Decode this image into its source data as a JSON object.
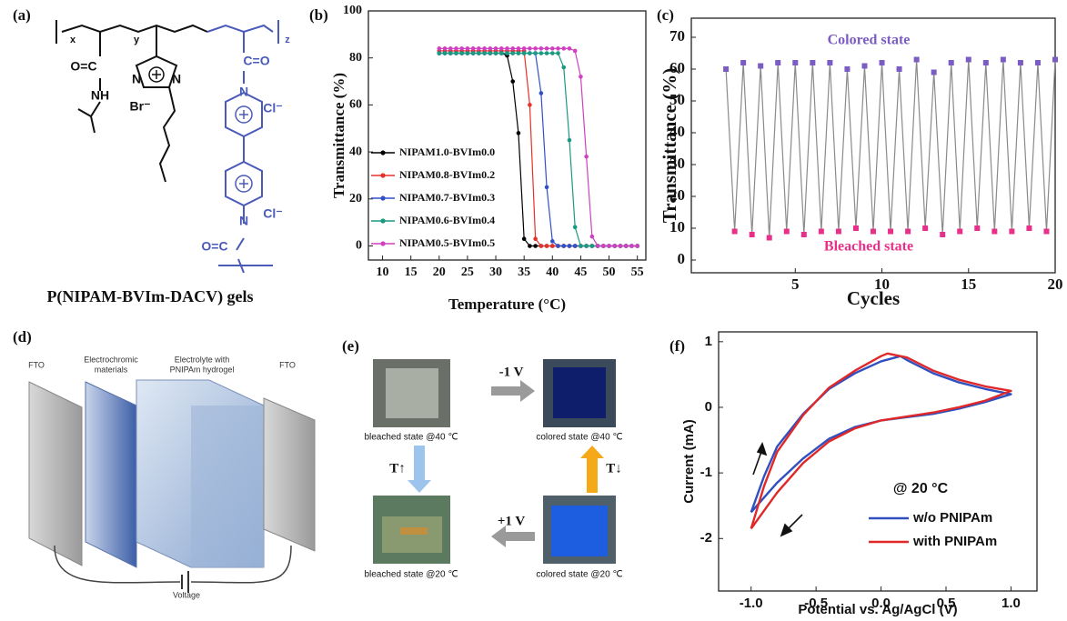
{
  "panel_labels": [
    "(a)",
    "(b)",
    "(c)",
    "(d)",
    "(e)",
    "(f)"
  ],
  "structure": {
    "caption": "P(NIPAM-BVIm-DACV) gels",
    "labels": [
      "x",
      "y",
      "z",
      "O=C",
      "NH",
      "N",
      "N",
      "Br⁻",
      "C=O",
      "N",
      "Cl⁻",
      "N",
      "Cl⁻",
      "O=C"
    ]
  },
  "device": {
    "labels": [
      [
        "FTO"
      ],
      [
        "Electrochromic",
        "materials"
      ],
      [
        "Electrolyte with",
        "PNIPAm hydrogel"
      ],
      [
        "FTO"
      ],
      [
        "Voltage"
      ]
    ]
  },
  "photos": {
    "captions": [
      "bleached state @40 ℃",
      "colored state @40 ℃",
      "bleached state @20 ℃",
      "colored state @20 ℃"
    ],
    "arrows": [
      "-1 V",
      "+1 V",
      "T↑",
      "T↓"
    ]
  },
  "chart_data": [
    {
      "type": "line",
      "xlabel": "Temperature (°C)",
      "ylabel": "Transmittance (%)",
      "marker": "circle",
      "legend": "center-left",
      "x": [
        20,
        21,
        22,
        23,
        24,
        25,
        26,
        27,
        28,
        29,
        30,
        31,
        32,
        33,
        34,
        35,
        36,
        37,
        38,
        39,
        40,
        41,
        42,
        43,
        44,
        45,
        46,
        47,
        48,
        49,
        50,
        51,
        52,
        53,
        54,
        55
      ],
      "xlim": [
        7.5,
        56.5
      ],
      "xticks": [
        10,
        15,
        20,
        25,
        30,
        35,
        40,
        45,
        50,
        55
      ],
      "ylim": [
        -6,
        100
      ],
      "yticks": [
        0,
        20,
        40,
        60,
        80,
        100
      ],
      "series": [
        {
          "name": "NIPAM1.0-BVIm0.0",
          "color": "#000000",
          "values": [
            82,
            82,
            82,
            82,
            82,
            82,
            82,
            82,
            82,
            82,
            82,
            82,
            81,
            70,
            48,
            3,
            0,
            0,
            0,
            0,
            0,
            0,
            0,
            0,
            0,
            0,
            0,
            0,
            0,
            0,
            0,
            0,
            0,
            0,
            0,
            0
          ]
        },
        {
          "name": "NIPAM0.8-BVIm0.2",
          "color": "#e8302a",
          "values": [
            83,
            83,
            83,
            83,
            83,
            83,
            83,
            83,
            83,
            83,
            83,
            83,
            83,
            83,
            83,
            83,
            60,
            3,
            0,
            0,
            0,
            0,
            0,
            0,
            0,
            0,
            0,
            0,
            0,
            0,
            0,
            0,
            0,
            0,
            0,
            0
          ]
        },
        {
          "name": "NIPAM0.7-BVIm0.3",
          "color": "#3050c8",
          "values": [
            82,
            82,
            82,
            82,
            82,
            82,
            82,
            82,
            82,
            82,
            82,
            82,
            82,
            82,
            82,
            82,
            82,
            82,
            65,
            25,
            2,
            0,
            0,
            0,
            0,
            0,
            0,
            0,
            0,
            0,
            0,
            0,
            0,
            0,
            0,
            0
          ]
        },
        {
          "name": "NIPAM0.6-BVIm0.4",
          "color": "#1a9a80",
          "values": [
            82,
            82,
            82,
            82,
            82,
            82,
            82,
            82,
            82,
            82,
            82,
            82,
            82,
            82,
            82,
            82,
            82,
            82,
            82,
            82,
            82,
            82,
            76,
            45,
            8,
            0,
            0,
            0,
            0,
            0,
            0,
            0,
            0,
            0,
            0,
            0
          ]
        },
        {
          "name": "NIPAM0.5-BVIm0.5",
          "color": "#d040c0",
          "values": [
            84,
            84,
            84,
            84,
            84,
            84,
            84,
            84,
            84,
            84,
            84,
            84,
            84,
            84,
            84,
            84,
            84,
            84,
            84,
            84,
            84,
            84,
            84,
            84,
            83,
            72,
            38,
            4,
            0,
            0,
            0,
            0,
            0,
            0,
            0,
            0
          ]
        }
      ]
    },
    {
      "type": "line",
      "xlabel": "Cycles",
      "ylabel": "Transmittance (%)",
      "marker": "square",
      "annotations": [
        "Colored state",
        "Bleached state"
      ],
      "xlim": [
        -1,
        20
      ],
      "xticks": [
        5,
        10,
        15,
        20
      ],
      "ylim": [
        -4,
        76
      ],
      "yticks": [
        0,
        10,
        20,
        30,
        40,
        50,
        60,
        70
      ],
      "series": [
        {
          "color": "#8a8a8a",
          "x": [
            1,
            1.5,
            2,
            2.5,
            3,
            3.5,
            4,
            4.5,
            5,
            5.5,
            6,
            6.5,
            7,
            7.5,
            8,
            8.5,
            9,
            9.5,
            10,
            10.5,
            11,
            11.5,
            12,
            12.5,
            13,
            13.5,
            14,
            14.5,
            15,
            15.5,
            16,
            16.5,
            17,
            17.5,
            18,
            18.5,
            19,
            19.5,
            20
          ],
          "values": [
            60,
            9,
            62,
            8,
            61,
            7,
            62,
            9,
            62,
            8,
            62,
            9,
            62,
            9,
            60,
            10,
            61,
            9,
            62,
            9,
            60,
            9,
            63,
            10,
            59,
            8,
            62,
            9,
            63,
            10,
            62,
            9,
            63,
            9,
            62,
            10,
            62,
            9,
            63
          ],
          "marker_colors": [
            "#7b5cc4",
            "#e8308a",
            "#7b5cc4",
            "#e8308a",
            "#7b5cc4",
            "#e8308a",
            "#7b5cc4",
            "#e8308a",
            "#7b5cc4",
            "#e8308a",
            "#7b5cc4",
            "#e8308a",
            "#7b5cc4",
            "#e8308a",
            "#7b5cc4",
            "#e8308a",
            "#7b5cc4",
            "#e8308a",
            "#7b5cc4",
            "#e8308a",
            "#7b5cc4",
            "#e8308a",
            "#7b5cc4",
            "#e8308a",
            "#7b5cc4",
            "#e8308a",
            "#7b5cc4",
            "#e8308a",
            "#7b5cc4",
            "#e8308a",
            "#7b5cc4",
            "#e8308a",
            "#7b5cc4",
            "#e8308a",
            "#7b5cc4",
            "#e8308a",
            "#7b5cc4",
            "#e8308a",
            "#7b5cc4"
          ]
        }
      ]
    },
    {
      "type": "line",
      "xlabel": "Potential vs. Ag/AgCl (V)",
      "ylabel": "Current (mA)",
      "legend": "lower-right",
      "annotations": [
        "@ 20 °C"
      ],
      "xlim": [
        -1.25,
        1.2
      ],
      "xticks": [
        {
          "value": -1,
          "label": "-1.0"
        },
        {
          "value": -0.5,
          "label": "-0.5"
        },
        {
          "value": 0,
          "label": "0.0"
        },
        0.5,
        {
          "value": 1,
          "label": "1.0"
        }
      ],
      "ylim": [
        -2.8,
        1.15
      ],
      "yticks": [
        -2,
        -1,
        0,
        1
      ],
      "series": [
        {
          "name": "w/o PNIPAm",
          "color": "#3050c0",
          "x": [
            -1.0,
            -0.9,
            -0.8,
            -0.6,
            -0.4,
            -0.2,
            0.0,
            0.15,
            0.2,
            0.4,
            0.6,
            0.8,
            1.0,
            0.8,
            0.6,
            0.4,
            0.2,
            0.0,
            -0.2,
            -0.4,
            -0.6,
            -0.8,
            -1.0
          ],
          "values": [
            -1.6,
            -1.05,
            -0.6,
            -0.1,
            0.28,
            0.52,
            0.7,
            0.78,
            0.72,
            0.52,
            0.38,
            0.28,
            0.2,
            0.08,
            -0.02,
            -0.1,
            -0.15,
            -0.2,
            -0.3,
            -0.48,
            -0.78,
            -1.15,
            -1.6
          ]
        },
        {
          "name": "with PNIPAm",
          "color": "#e02828",
          "x": [
            -1.0,
            -0.9,
            -0.8,
            -0.6,
            -0.4,
            -0.2,
            0.0,
            0.05,
            0.2,
            0.4,
            0.6,
            0.8,
            1.0,
            0.8,
            0.6,
            0.4,
            0.2,
            0.0,
            -0.2,
            -0.4,
            -0.6,
            -0.8,
            -1.0
          ],
          "values": [
            -1.85,
            -1.2,
            -0.68,
            -0.12,
            0.3,
            0.56,
            0.78,
            0.82,
            0.76,
            0.56,
            0.42,
            0.32,
            0.25,
            0.1,
            0.0,
            -0.08,
            -0.14,
            -0.2,
            -0.32,
            -0.52,
            -0.85,
            -1.3,
            -1.85
          ]
        }
      ]
    }
  ]
}
